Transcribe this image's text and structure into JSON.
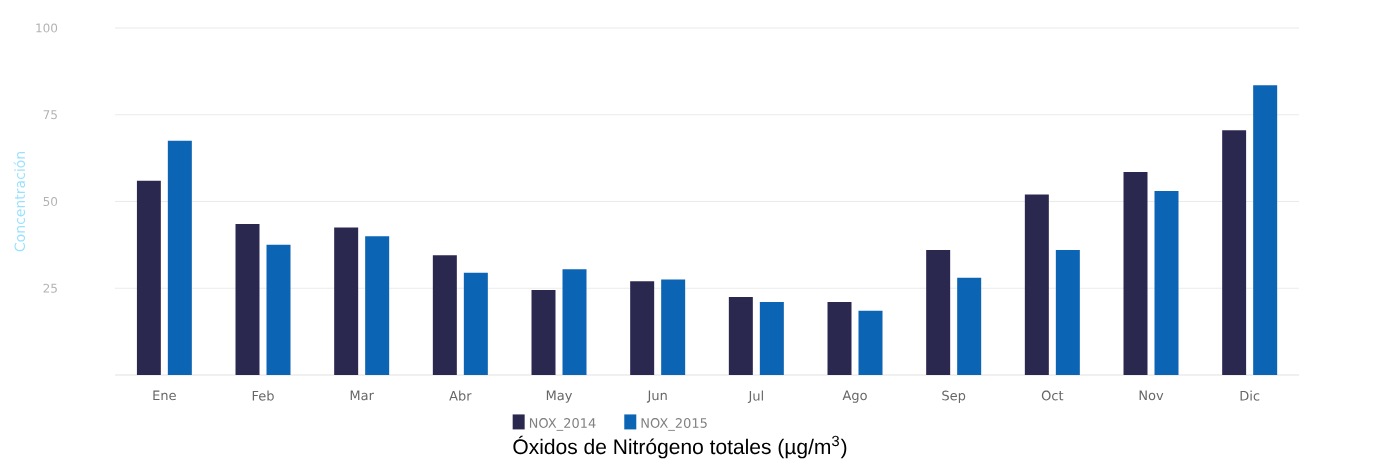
{
  "chart_data": {
    "type": "bar",
    "title": "Óxidos de Nitrógeno totales (µg/m$^{3}$)",
    "ylabel": "Concentración",
    "categories": [
      "Ene",
      "Feb",
      "Mar",
      "Abr",
      "May",
      "Jun",
      "Jul",
      "Ago",
      "Sep",
      "Oct",
      "Nov",
      "Dic"
    ],
    "series": [
      {
        "name": "NOX_2014",
        "color": "#2b2850",
        "values": [
          56,
          43.5,
          42.5,
          34.5,
          24.5,
          27,
          22.5,
          21,
          36,
          52,
          58.5,
          70.5
        ]
      },
      {
        "name": "NOX_2015",
        "color": "#0c64b4",
        "values": [
          67.5,
          37.5,
          40,
          29.5,
          30.5,
          27.5,
          21,
          18.5,
          28,
          36,
          53,
          83.5
        ]
      }
    ],
    "ylim": [
      0,
      100
    ],
    "yticks": [
      25,
      50,
      75,
      100
    ],
    "grid": "y",
    "legend": "bottom"
  }
}
